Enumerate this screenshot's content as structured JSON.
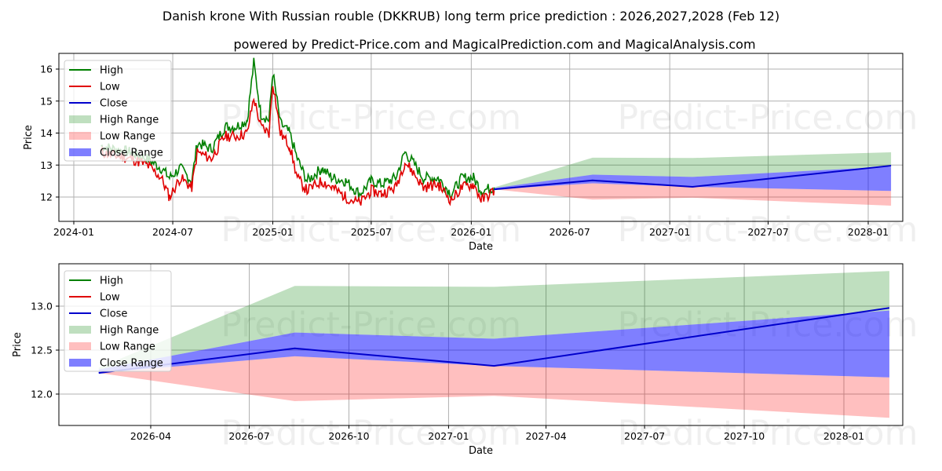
{
  "chart_data": [
    {
      "type": "line",
      "title": "Danish krone With Russian rouble (DKKRUB) long term price prediction : 2026,2027,2028 (Feb 12)",
      "subtitle": "powered by Predict-Price.com and MagicalPrediction.com and MagicalAnalysis.com",
      "xlabel": "Date",
      "ylabel": "Price",
      "ylim": [
        11.35,
        16.45
      ],
      "yticks": [
        "12",
        "13",
        "14",
        "15",
        "16"
      ],
      "xticks": [
        "2024-01",
        "2024-07",
        "2025-01",
        "2025-07",
        "2026-01",
        "2026-07",
        "2027-01",
        "2027-07",
        "2028-01"
      ],
      "grid": true,
      "legend_position": "top-left",
      "legend": [
        "High",
        "Low",
        "Close",
        "High Range",
        "Low Range",
        "Close Range"
      ],
      "history": {
        "dates": [
          "2024-02-20",
          "2024-03-15",
          "2024-04-15",
          "2024-05-15",
          "2024-06-10",
          "2024-06-25",
          "2024-07-15",
          "2024-08-05",
          "2024-08-15",
          "2024-09-10",
          "2024-10-05",
          "2024-10-25",
          "2024-11-15",
          "2024-11-27",
          "2024-12-10",
          "2024-12-25",
          "2025-01-01",
          "2025-01-15",
          "2025-02-01",
          "2025-02-15",
          "2025-03-05",
          "2025-04-01",
          "2025-04-20",
          "2025-05-15",
          "2025-06-10",
          "2025-07-01",
          "2025-07-20",
          "2025-08-15",
          "2025-09-01",
          "2025-09-15",
          "2025-10-05",
          "2025-11-01",
          "2025-11-25",
          "2025-12-15",
          "2026-01-05",
          "2026-01-20",
          "2026-02-12"
        ],
        "high": [
          13.6,
          13.5,
          13.4,
          13.2,
          12.9,
          12.6,
          12.9,
          12.5,
          13.7,
          13.5,
          14.2,
          14.2,
          14.4,
          16.2,
          14.6,
          14.4,
          15.9,
          14.3,
          14.0,
          13.2,
          12.5,
          12.9,
          12.6,
          12.5,
          12.1,
          12.5,
          12.4,
          12.6,
          13.4,
          13.1,
          12.6,
          12.6,
          12.1,
          12.6,
          12.6,
          12.2,
          12.3
        ],
        "low": [
          13.4,
          13.3,
          13.2,
          13.0,
          12.6,
          12.0,
          12.6,
          12.3,
          13.4,
          13.2,
          13.9,
          13.9,
          14.0,
          15.1,
          14.2,
          14.0,
          15.6,
          14.0,
          13.6,
          12.6,
          12.2,
          12.5,
          12.3,
          12.0,
          11.8,
          12.2,
          12.1,
          12.3,
          13.1,
          12.8,
          12.3,
          12.4,
          11.9,
          12.3,
          12.4,
          11.9,
          12.2
        ]
      }
    },
    {
      "type": "area",
      "xlabel": "Date",
      "ylabel": "Price",
      "ylim": [
        11.65,
        13.42
      ],
      "yticks": [
        "12.0",
        "12.5",
        "13.0"
      ],
      "xticks": [
        "2026-04",
        "2026-07",
        "2026-10",
        "2027-01",
        "2027-04",
        "2027-07",
        "2027-10",
        "2028-01"
      ],
      "grid": true,
      "legend_position": "top-left",
      "legend": [
        "High",
        "Low",
        "Close",
        "High Range",
        "Low Range",
        "Close Range"
      ],
      "forecast": {
        "dates": [
          "2026-02-12",
          "2026-08-12",
          "2027-02-12",
          "2028-02-12"
        ],
        "close": [
          12.24,
          12.52,
          12.32,
          12.98
        ],
        "close_range_high": [
          12.28,
          12.7,
          12.63,
          12.95
        ],
        "close_range_low": [
          12.24,
          12.43,
          12.32,
          12.19
        ],
        "high_range_high": [
          12.3,
          13.23,
          13.22,
          13.4
        ],
        "low_range_low": [
          12.24,
          11.92,
          11.98,
          11.73
        ]
      }
    }
  ],
  "watermark": "Predict-Price.com",
  "colors": {
    "high": "#008000",
    "low": "#e00000",
    "close": "#0000cc",
    "high_range": "#8fc98f",
    "low_range": "#ff9c9c",
    "close_range": "#7f7fff",
    "grid": "#b0b0b0"
  }
}
